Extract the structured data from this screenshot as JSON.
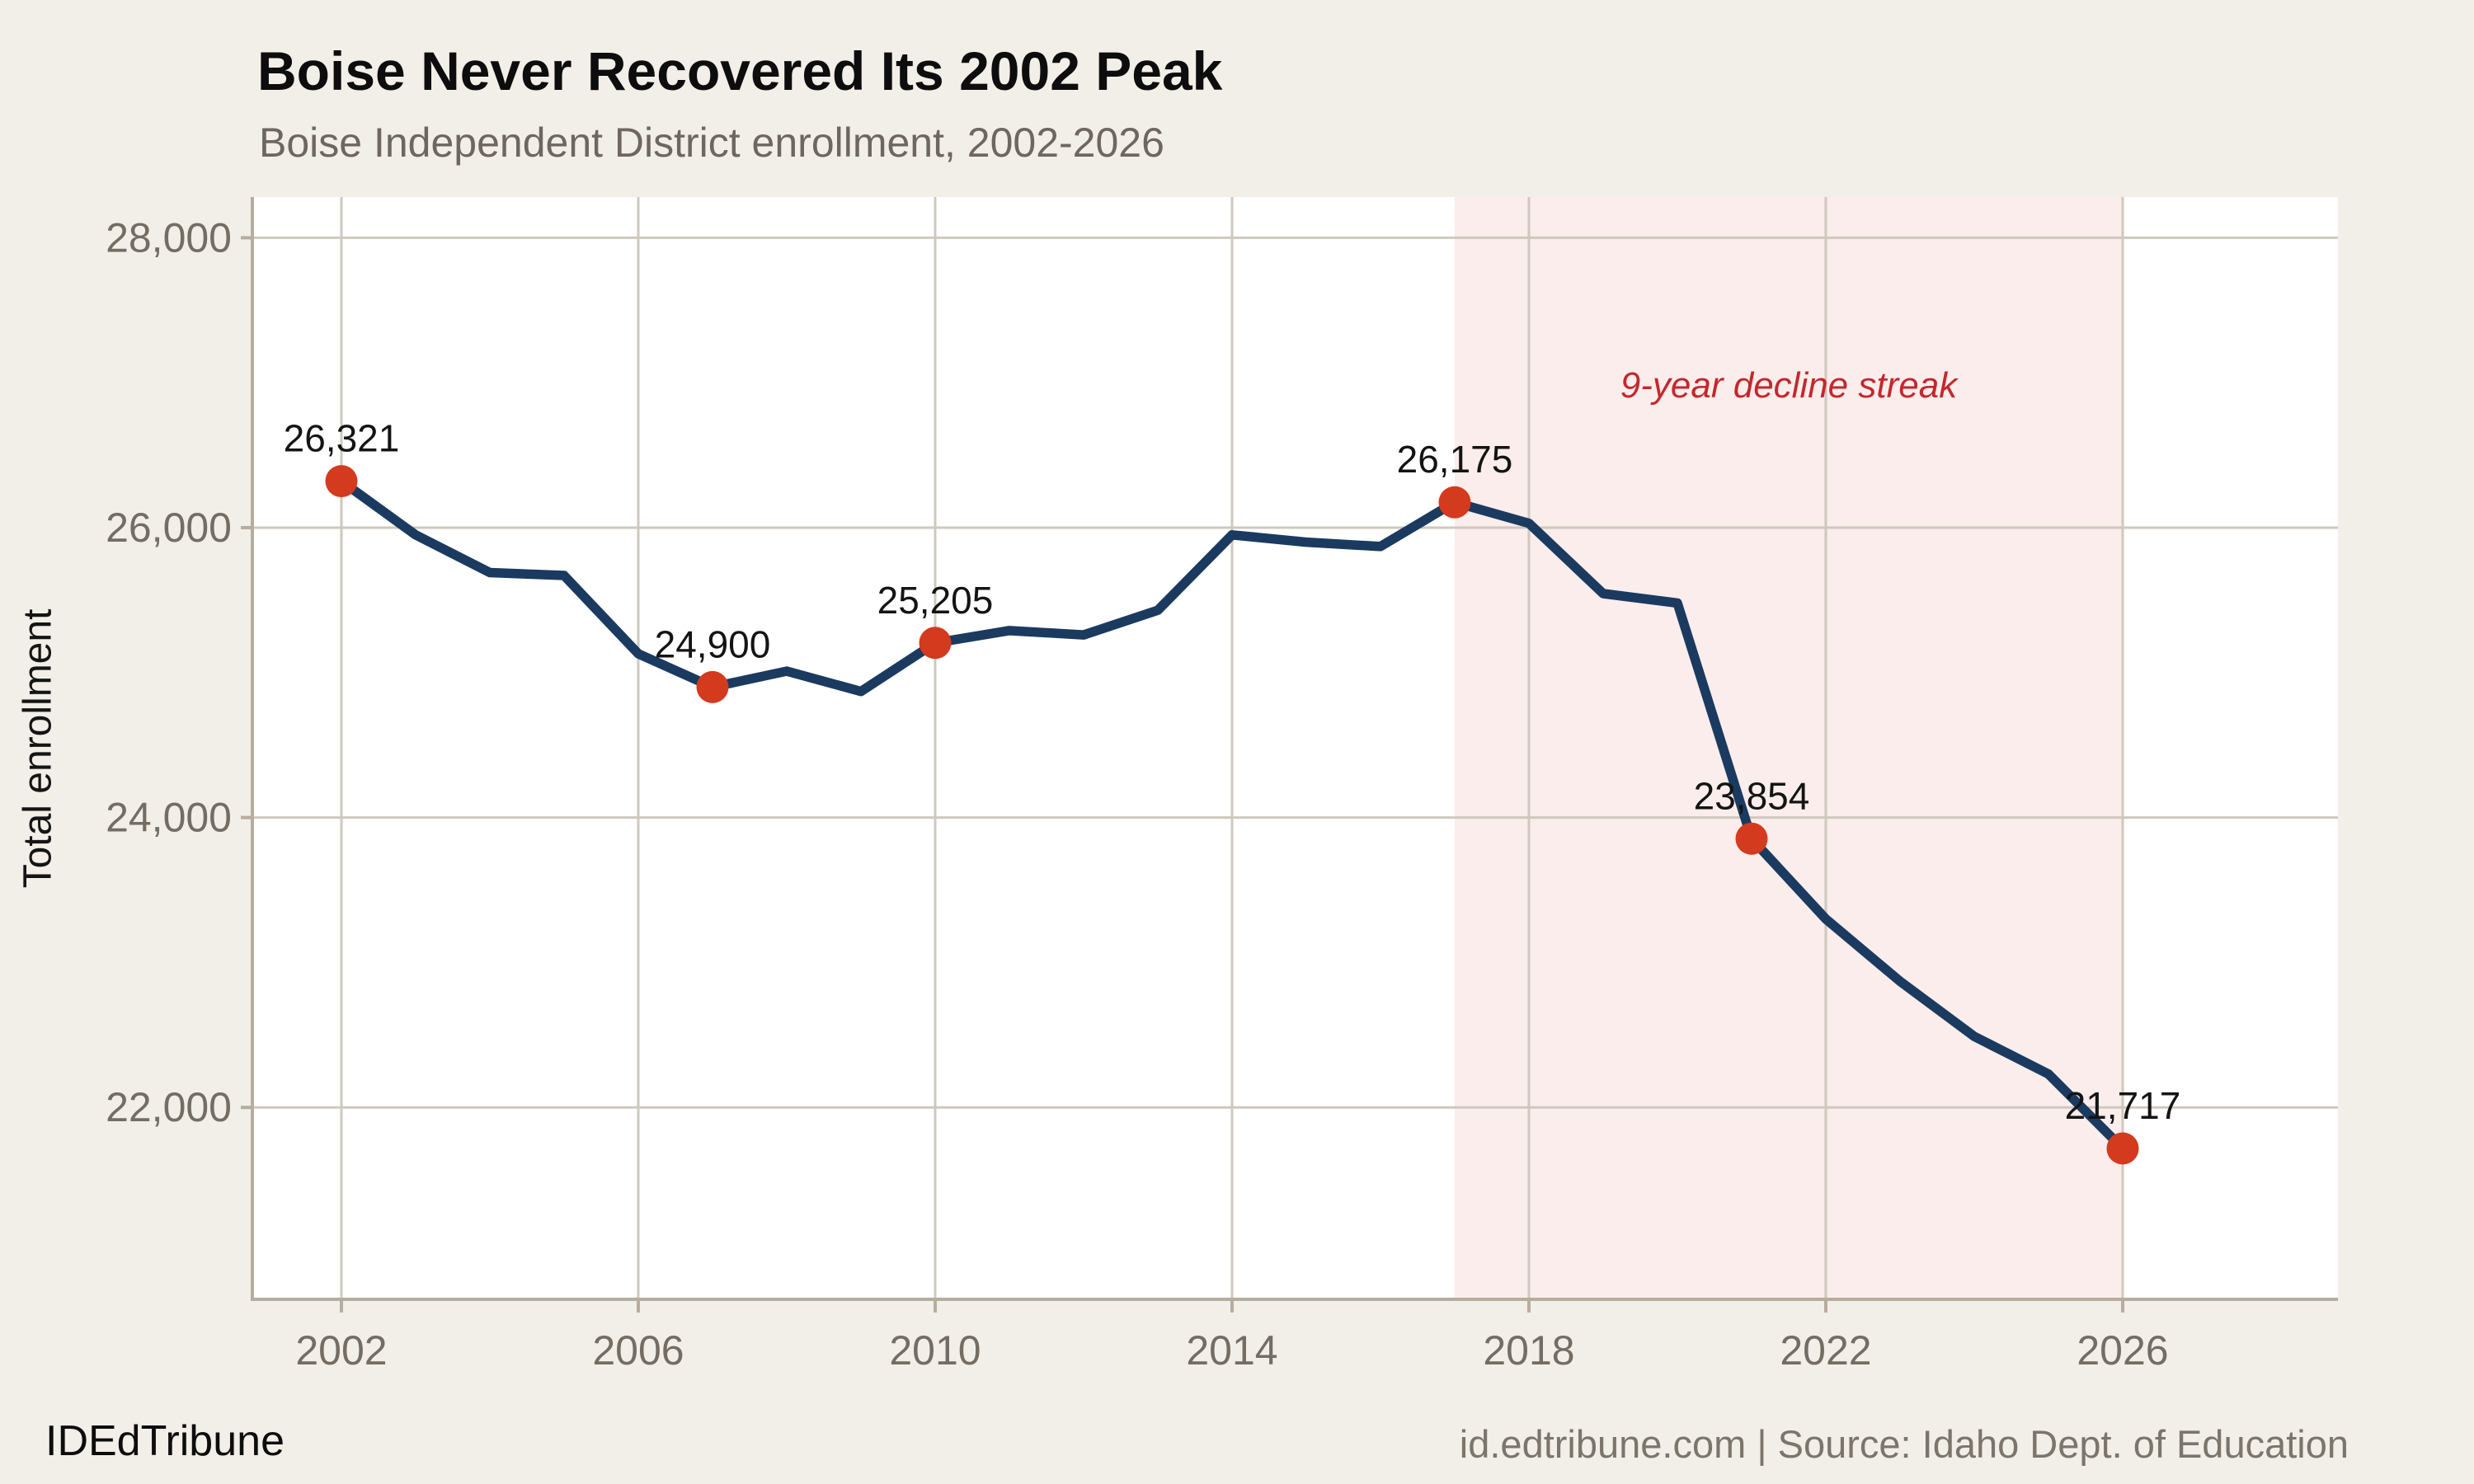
{
  "header": {
    "title": "Boise Never Recovered Its 2002 Peak",
    "subtitle": "Boise Independent District enrollment, 2002-2026"
  },
  "footer": {
    "brand": "IDEdTribune",
    "source": "id.edtribune.com | Source: Idaho Dept. of Education"
  },
  "chart_data": {
    "type": "line",
    "title": "Boise Never Recovered Its 2002 Peak",
    "subtitle": "Boise Independent District enrollment, 2002-2026",
    "xlabel": "",
    "ylabel": "Total enrollment",
    "grid": true,
    "legend": "none",
    "x": [
      2002,
      2003,
      2004,
      2005,
      2006,
      2007,
      2008,
      2009,
      2010,
      2011,
      2012,
      2013,
      2014,
      2015,
      2016,
      2017,
      2018,
      2019,
      2020,
      2021,
      2022,
      2023,
      2024,
      2025,
      2026
    ],
    "series": [
      {
        "name": "Total enrollment",
        "values": [
          26321,
          25950,
          25690,
          25670,
          25130,
          24900,
          25010,
          24870,
          25205,
          25290,
          25260,
          25430,
          25950,
          25900,
          25870,
          26175,
          26030,
          25545,
          25480,
          23854,
          23300,
          22870,
          22490,
          22230,
          21717
        ]
      }
    ],
    "labeled_points": [
      {
        "year": 2002,
        "value": 26321,
        "label": "26,321"
      },
      {
        "year": 2007,
        "value": 24900,
        "label": "24,900"
      },
      {
        "year": 2010,
        "value": 25205,
        "label": "25,205"
      },
      {
        "year": 2017,
        "value": 26175,
        "label": "26,175"
      },
      {
        "year": 2021,
        "value": 23854,
        "label": "23,854"
      },
      {
        "year": 2026,
        "value": 21717,
        "label": "21,717"
      }
    ],
    "x_ticks": {
      "values": [
        2002,
        2006,
        2010,
        2014,
        2018,
        2022,
        2026
      ],
      "labels": [
        "2002",
        "2006",
        "2010",
        "2014",
        "2018",
        "2022",
        "2026"
      ]
    },
    "y_ticks": {
      "values": [
        28000,
        26000,
        24000,
        22000
      ],
      "labels": [
        "28,000",
        "26,000",
        "24,000",
        "22,000"
      ]
    },
    "x_range": [
      2000.8,
      2028.9
    ],
    "y_range": [
      20676,
      28281
    ],
    "highlight_region": {
      "x_start": 2017,
      "x_end": 2026,
      "label": "9-year decline streak",
      "label_anchor": {
        "year": 2021.5,
        "value": 26990
      }
    },
    "colors": {
      "line": "#1b3a60",
      "point": "#d43a1e",
      "region_fill": "#faedeb",
      "annotation_text": "#c3282e",
      "gridline": "#cfc8be",
      "axis_line": "#b6ad9f",
      "tick_text": "#736d63",
      "data_label_text": "#141414",
      "plot_background": "#ffffff",
      "page_background": "#f2efe9"
    }
  }
}
